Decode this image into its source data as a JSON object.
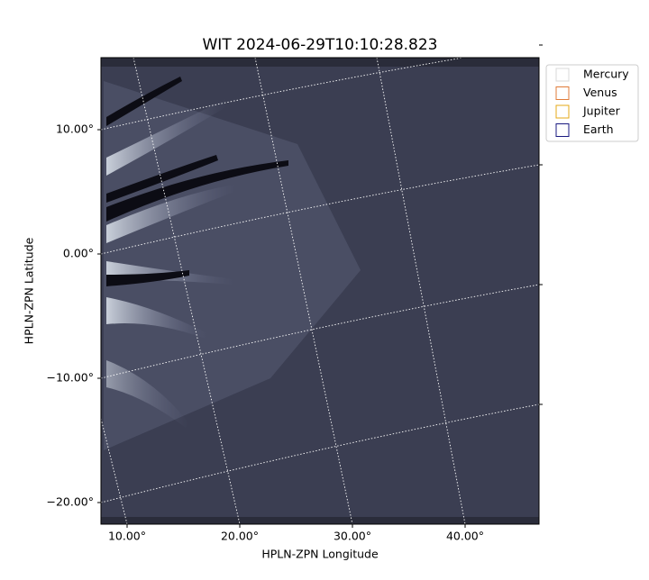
{
  "chart_data": {
    "type": "image",
    "title": "WIT 2024-06-29T10:10:28.823",
    "x_label": "HPLN-ZPN Longitude",
    "y_label": "HPLN-ZPN Latitude",
    "xticks": [
      {
        "value": 10,
        "label": "10.00°"
      },
      {
        "value": 20,
        "label": "20.00°"
      },
      {
        "value": 30,
        "label": "30.00°"
      },
      {
        "value": 40,
        "label": "40.00°"
      }
    ],
    "yticks": [
      {
        "value": -20,
        "label": "−20.00°"
      },
      {
        "value": -10,
        "label": "−10.00°"
      },
      {
        "value": 0,
        "label": "0.00°"
      },
      {
        "value": 10,
        "label": "10.00°"
      }
    ],
    "grid": true,
    "legend_position": "outside-upper-right",
    "series": [
      {
        "name": "Mercury",
        "color": "#d8d8d8"
      },
      {
        "name": "Venus",
        "color": "#e07b39"
      },
      {
        "name": "Jupiter",
        "color": "#e6a817"
      },
      {
        "name": "Earth",
        "color": "#1a1a80"
      }
    ]
  }
}
